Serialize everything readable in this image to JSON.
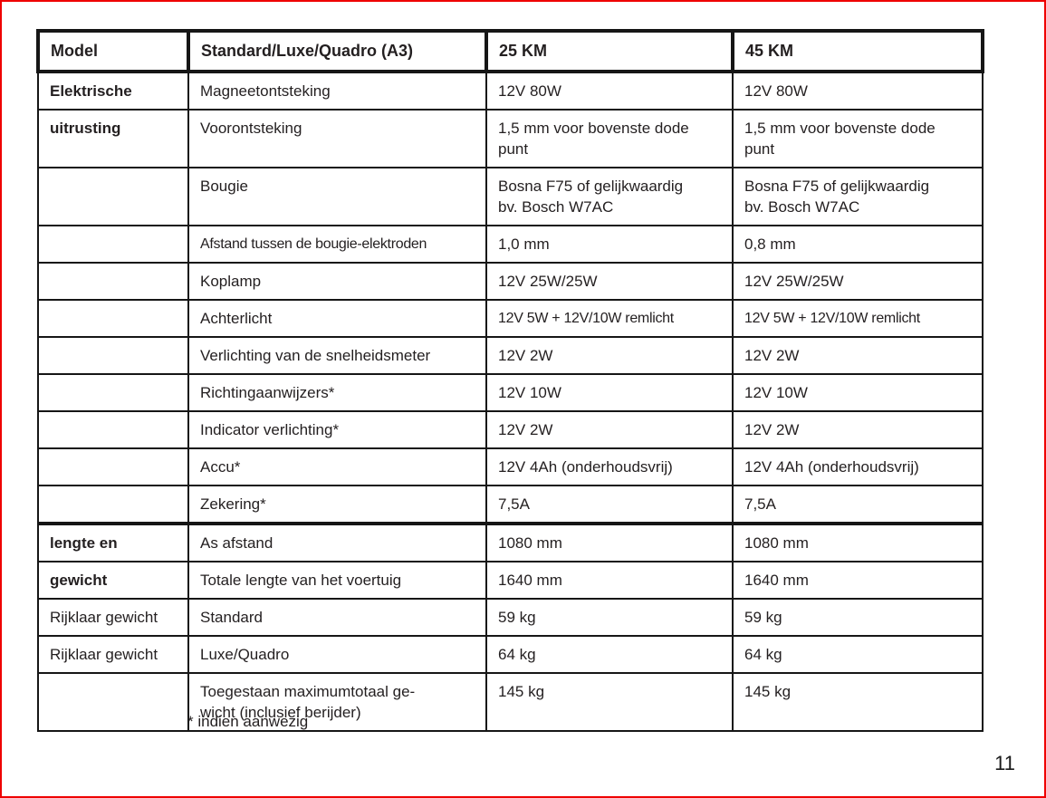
{
  "page": {
    "footnote": "* indien aanwezig",
    "page_number": "11"
  },
  "colors": {
    "page_border_red": "#ee0000",
    "table_line_black": "#161616",
    "text": "#231f20"
  },
  "table": {
    "headers": [
      "Model",
      "Standard/Luxe/Quadro (A3)",
      "25 KM",
      "45 KM"
    ],
    "rows": [
      {
        "model": "Elektrische",
        "item": "Magneetontsteking",
        "km25": "12V 80W",
        "km45": "12V 80W"
      },
      {
        "model": "uitrusting",
        "item": "Voorontsteking",
        "km25": "1,5 mm voor bovenste dode\npunt",
        "km45": "1,5 mm voor bovenste dode\npunt"
      },
      {
        "model": "",
        "item": "Bougie",
        "km25": "Bosna F75 of gelijkwaardig\nbv. Bosch W7AC",
        "km45": "Bosna F75 of gelijkwaardig\nbv. Bosch W7AC"
      },
      {
        "model": "",
        "item": "Afstand tussen de bougie-elektroden",
        "km25": "1,0 mm",
        "km45": "0,8 mm"
      },
      {
        "model": "",
        "item": "Koplamp",
        "km25": "12V 25W/25W",
        "km45": "12V 25W/25W"
      },
      {
        "model": "",
        "item": "Achterlicht",
        "km25": "12V 5W + 12V/10W remlicht",
        "km45": "12V 5W + 12V/10W remlicht"
      },
      {
        "model": "",
        "item": "Verlichting van de snelheidsmeter",
        "km25": "12V 2W",
        "km45": "12V 2W"
      },
      {
        "model": "",
        "item": "Richtingaanwijzers*",
        "km25": "12V 10W",
        "km45": "12V 10W"
      },
      {
        "model": "",
        "item": "Indicator verlichting*",
        "km25": "12V 2W",
        "km45": "12V 2W"
      },
      {
        "model": "",
        "item": "Accu*",
        "km25": "12V 4Ah (onderhoudsvrij)",
        "km45": "12V 4Ah (onderhoudsvrij)"
      },
      {
        "model": "",
        "item": "Zekering*",
        "km25": "7,5A",
        "km45": "7,5A"
      },
      {
        "model": "lengte en",
        "item": "As afstand",
        "km25": "1080 mm",
        "km45": "1080 mm"
      },
      {
        "model": "gewicht",
        "item": "Totale lengte van het voertuig",
        "km25": "1640 mm",
        "km45": "1640 mm"
      },
      {
        "model": "Rijklaar gewicht",
        "item": "Standard",
        "km25": "59 kg",
        "km45": "59 kg"
      },
      {
        "model": "Rijklaar gewicht",
        "item": "Luxe/Quadro",
        "km25": "64 kg",
        "km45": "64 kg"
      },
      {
        "model": "",
        "item": "Toegestaan maximumtotaal ge-\nwicht (inclusief berijder)",
        "km25": "145 kg",
        "km45": "145 kg"
      }
    ]
  }
}
